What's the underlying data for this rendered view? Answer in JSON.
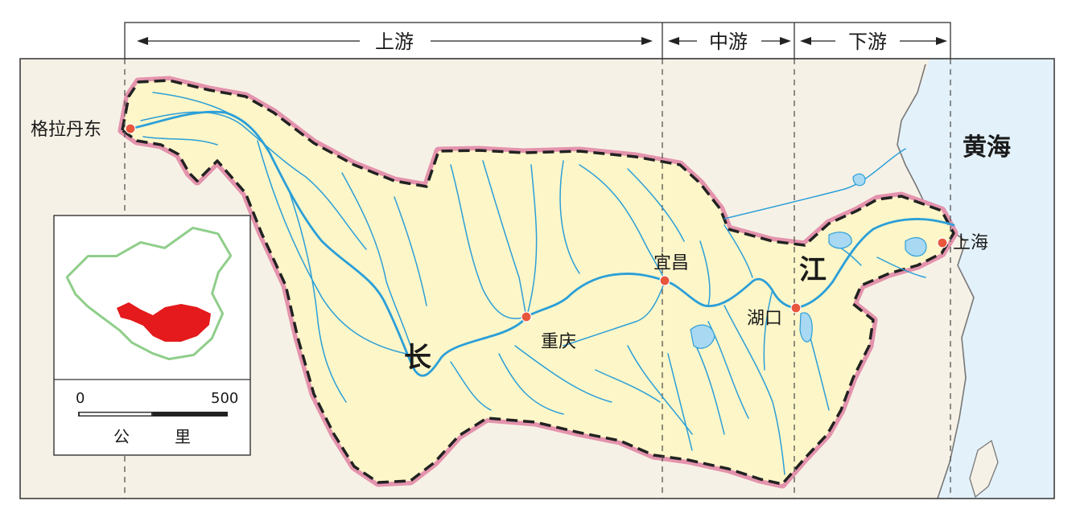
{
  "sections": {
    "upper": "上游",
    "middle": "中游",
    "lower": "下游"
  },
  "cities": {
    "source": "格拉丹东",
    "chongqing": "重庆",
    "yichang": "宜昌",
    "hukou": "湖口",
    "shanghai": "上海"
  },
  "river_name": {
    "char1": "长",
    "char2": "江"
  },
  "sea": "黄海",
  "scale": {
    "start": "0",
    "end": "500",
    "unit_char1": "公",
    "unit_char2": "里"
  },
  "colors": {
    "basin_fill": "#fdf6c8",
    "land_fill": "#f6f1e6",
    "sea_fill": "#e3f1fa",
    "river": "#2b9fd8",
    "boundary_pink": "#e493ad",
    "boundary_dash": "#222222",
    "city_dot": "#e8563c",
    "inset_highlight": "#e41a1c"
  }
}
